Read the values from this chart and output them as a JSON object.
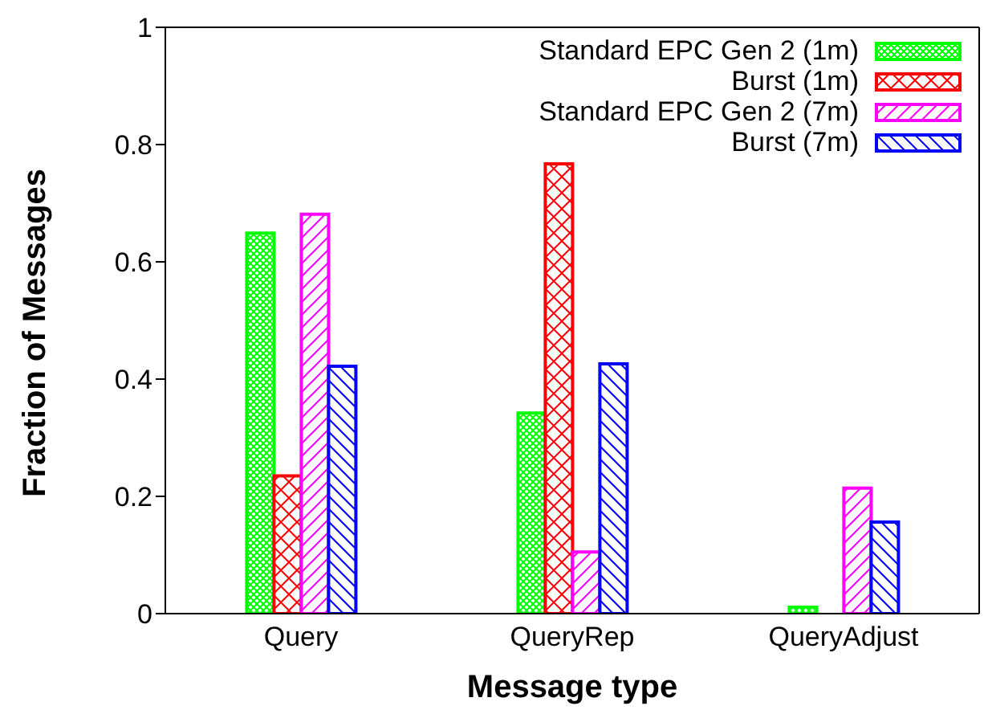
{
  "chart_data": {
    "type": "bar",
    "xlabel": "Message type",
    "ylabel": "Fraction of Messages",
    "categories": [
      "Query",
      "QueryRep",
      "QueryAdjust"
    ],
    "series": [
      {
        "name": "Standard EPC Gen 2 (1m)",
        "color": "#00ff00",
        "values": [
          0.649,
          0.342,
          0.011
        ]
      },
      {
        "name": "Burst (1m)",
        "color": "#ff0000",
        "values": [
          0.235,
          0.767,
          0
        ]
      },
      {
        "name": "Standard EPC Gen 2 (7m)",
        "color": "#ff00ff",
        "values": [
          0.681,
          0.105,
          0.214
        ]
      },
      {
        "name": "Burst (7m)",
        "color": "#0000ff",
        "values": [
          0.422,
          0.426,
          0.156
        ]
      }
    ],
    "ylim": [
      0,
      1
    ],
    "yticks": [
      0,
      0.2,
      0.4,
      0.6,
      0.8,
      1
    ],
    "grid": false,
    "legend": "top right"
  }
}
